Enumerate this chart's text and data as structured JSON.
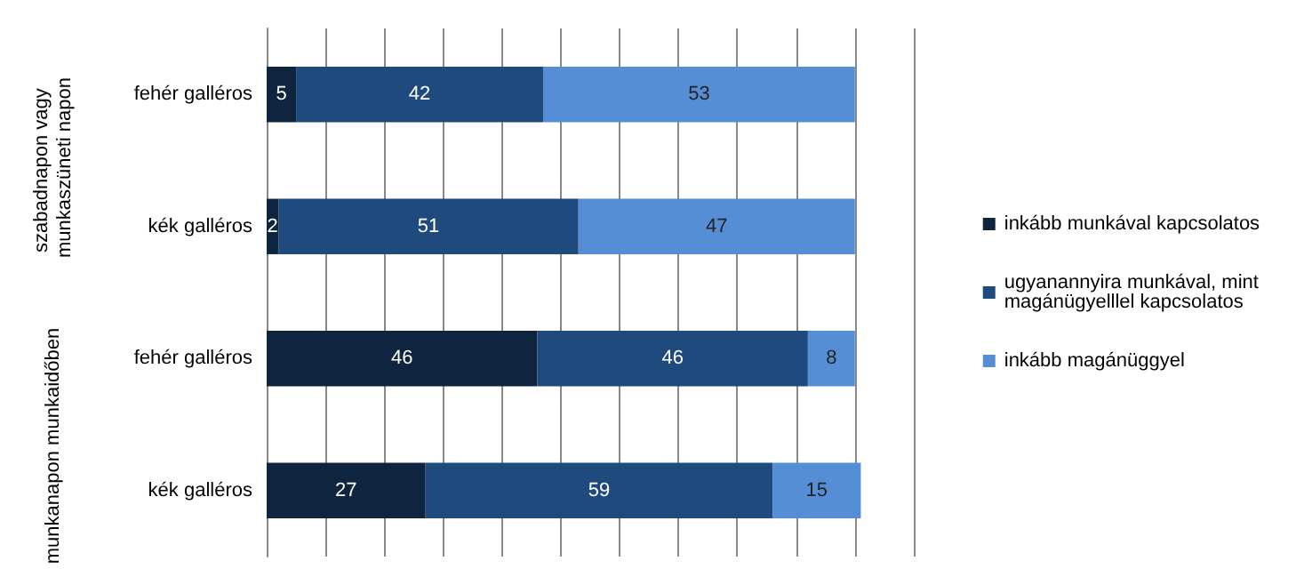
{
  "chart_data": {
    "type": "bar",
    "orientation": "horizontal",
    "stacked": true,
    "categories": [
      "fehér galléros",
      "kék galléros",
      "fehér galléros",
      "kék galléros"
    ],
    "series": [
      {
        "name": "inkább munkával kapcsolatos",
        "color": "#0f243e",
        "values": [
          5,
          2,
          46,
          27
        ]
      },
      {
        "name": "ugyanannyira munkával, mint magánügyelllel kapcsolatos",
        "color": "#1f4a7e",
        "values": [
          42,
          51,
          46,
          59
        ]
      },
      {
        "name": "inkább magánüggyel",
        "color": "#558ed5",
        "values": [
          53,
          47,
          8,
          15
        ]
      }
    ],
    "annotations": [
      "szabadnapon vagy munkaszüneti napon",
      "munkanapon munkaidőben"
    ],
    "data_labels": true,
    "grid": "x",
    "legend": "right",
    "tick_labels": "y"
  }
}
